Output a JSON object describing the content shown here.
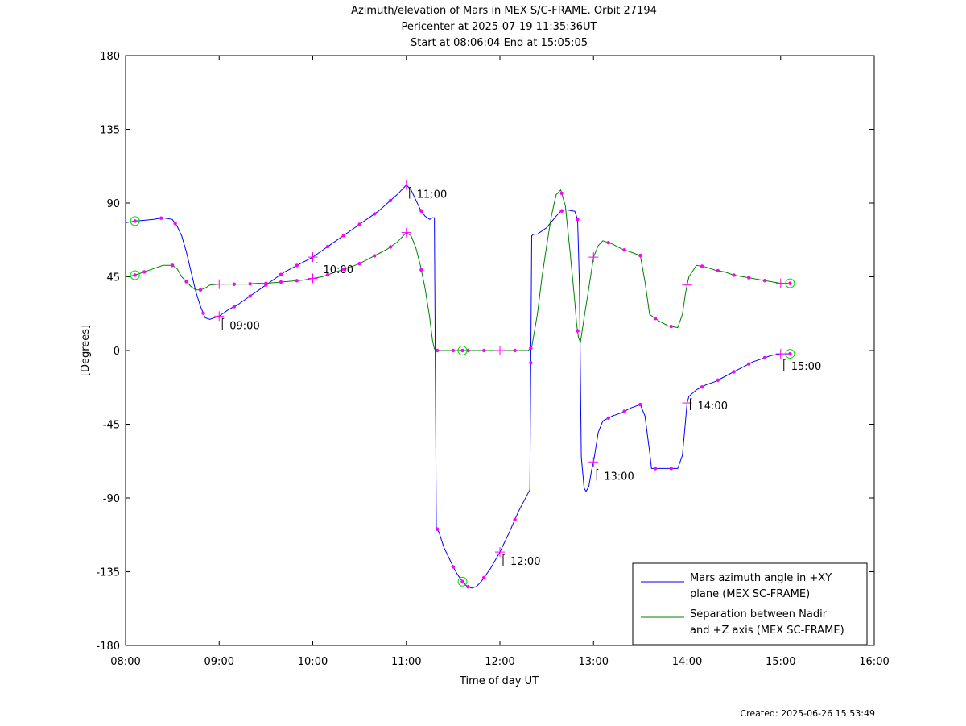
{
  "title_lines": [
    "Azimuth/elevation of Mars in MEX S/C-FRAME.  Orbit 27194",
    "Pericenter at 2025-07-19 11:35:36UT",
    "Start at 08:06:04 End at 15:05:05"
  ],
  "created": "Created: 2025-06-26 15:53:49",
  "colors": {
    "azimuth": "#0000ff",
    "separation": "#008000",
    "markers": "#ff00ff",
    "circle_markers": "#00dd00"
  },
  "chart_data": {
    "type": "line",
    "xlabel": "Time of day UT",
    "ylabel": "[Degrees]",
    "xlim_hours": [
      8,
      16
    ],
    "ylim": [
      -180,
      180
    ],
    "x_tick_labels": [
      "08:00",
      "09:00",
      "10:00",
      "11:00",
      "12:00",
      "13:00",
      "14:00",
      "15:00",
      "16:00"
    ],
    "y_ticks": [
      180,
      135,
      90,
      45,
      0,
      -45,
      -90,
      -135,
      -180
    ],
    "legend_position": "bottom-right",
    "legend": [
      {
        "line1": "Mars azimuth angle in +XY",
        "line2": "plane (MEX SC-FRAME)"
      },
      {
        "line1": "Separation between Nadir",
        "line2": "and +Z axis (MEX SC-FRAME)"
      }
    ],
    "hour_annotations": [
      {
        "label": "09:00",
        "x": 9,
        "y": 21
      },
      {
        "label": "10:00",
        "x": 10,
        "y": 55
      },
      {
        "label": "11:00",
        "x": 11,
        "y": 101
      },
      {
        "label": "12:00",
        "x": 12,
        "y": -123
      },
      {
        "label": "13:00",
        "x": 13,
        "y": -71
      },
      {
        "label": "14:00",
        "x": 14,
        "y": -28
      },
      {
        "label": "15:00",
        "x": 15,
        "y": -4
      }
    ],
    "series": [
      {
        "x": [
          8.0,
          8.1,
          8.2,
          8.3,
          8.4,
          8.5,
          8.55,
          8.6,
          8.65,
          8.7,
          8.75,
          8.8,
          8.85,
          8.9,
          8.95,
          9.0,
          9.1,
          9.2,
          9.3,
          9.4,
          9.5,
          9.6,
          9.7,
          9.8,
          9.9,
          10.0,
          10.1,
          10.2,
          10.3,
          10.4,
          10.5,
          10.6,
          10.7,
          10.8,
          10.9,
          11.0,
          11.05,
          11.1,
          11.15,
          11.2,
          11.25,
          11.28,
          11.3,
          11.32,
          11.34,
          11.35,
          11.4,
          11.5,
          11.55,
          11.6,
          11.65,
          11.7,
          11.75,
          11.8,
          11.9,
          12.0,
          12.1,
          12.2,
          12.32,
          12.34,
          12.36,
          12.4,
          12.5,
          12.6,
          12.65,
          12.7,
          12.8,
          12.83,
          12.85,
          12.87,
          12.9,
          12.92,
          12.95,
          12.98,
          13.0,
          13.05,
          13.1,
          13.2,
          13.3,
          13.4,
          13.5,
          13.55,
          13.6,
          13.62,
          13.65,
          13.7,
          13.8,
          13.9,
          13.95,
          13.98,
          14.0,
          14.02,
          14.1,
          14.2,
          14.3,
          14.4,
          14.5,
          14.6,
          14.7,
          14.8,
          14.9,
          15.0,
          15.08
        ],
        "values": [
          78,
          79,
          79.5,
          80,
          81,
          80,
          76,
          70,
          60,
          48,
          36,
          27,
          20,
          19,
          20,
          21,
          25,
          28,
          32,
          36,
          40,
          44,
          48,
          51,
          54,
          57,
          61,
          65,
          69,
          73,
          77,
          81,
          85,
          90,
          95,
          101,
          98,
          92,
          86,
          82,
          80,
          81,
          81,
          -108,
          -110,
          -111,
          -120,
          -132,
          -137,
          -141,
          -144,
          -145,
          -144,
          -141,
          -133,
          -123,
          -111,
          -98,
          -85,
          70,
          71,
          71,
          75,
          82,
          85,
          86,
          85,
          80,
          40,
          -65,
          -84,
          -86,
          -83,
          -73,
          -68,
          -50,
          -43,
          -40,
          -38,
          -35,
          -33,
          -40,
          -62,
          -72,
          -72,
          -72,
          -72,
          -72,
          -64,
          -45,
          -32,
          -28,
          -24,
          -21,
          -19,
          -16,
          -13,
          -10,
          -7,
          -5,
          -3,
          -2,
          -2
        ],
        "markers": {
          "dot_x": [
            8.38,
            8.53,
            8.83,
            9.16,
            9.33,
            9.5,
            9.66,
            9.83,
            10.16,
            10.33,
            10.5,
            10.66,
            10.83,
            11.16,
            11.33,
            11.5,
            11.66,
            11.83,
            12.16,
            12.33,
            12.66,
            12.83,
            13.16,
            13.33,
            13.5,
            13.66,
            13.83,
            14.16,
            14.33,
            14.5,
            14.66,
            14.83
          ],
          "cross_x": [
            9.0,
            10.0,
            11.0,
            12.0,
            13.0,
            14.0,
            15.0
          ],
          "circle_x": [
            8.1,
            11.6,
            15.1
          ]
        }
      },
      {
        "x": [
          8.0,
          8.1,
          8.2,
          8.3,
          8.4,
          8.5,
          8.55,
          8.6,
          8.65,
          8.7,
          8.75,
          8.8,
          8.85,
          8.9,
          9.0,
          9.1,
          9.2,
          9.3,
          9.4,
          9.5,
          9.6,
          9.7,
          9.8,
          9.9,
          10.0,
          10.1,
          10.2,
          10.3,
          10.4,
          10.5,
          10.6,
          10.7,
          10.8,
          10.9,
          11.0,
          11.05,
          11.1,
          11.15,
          11.2,
          11.25,
          11.28,
          11.3,
          11.32,
          11.35,
          11.4,
          11.5,
          11.6,
          11.7,
          11.8,
          11.9,
          12.0,
          12.1,
          12.2,
          12.3,
          12.34,
          12.4,
          12.45,
          12.5,
          12.55,
          12.6,
          12.65,
          12.7,
          12.75,
          12.8,
          12.82,
          12.84,
          12.86,
          12.9,
          12.95,
          13.0,
          13.05,
          13.1,
          13.2,
          13.3,
          13.4,
          13.5,
          13.55,
          13.6,
          13.65,
          13.7,
          13.8,
          13.9,
          13.95,
          13.98,
          14.0,
          14.02,
          14.1,
          14.2,
          14.3,
          14.4,
          14.5,
          14.6,
          14.7,
          14.8,
          14.9,
          15.0,
          15.08
        ],
        "values": [
          45,
          46,
          48,
          50,
          52,
          52,
          50,
          45,
          42,
          39,
          37,
          37,
          38,
          40,
          40.5,
          40.5,
          40.5,
          40.5,
          41,
          41,
          41.5,
          42,
          42.5,
          43,
          44,
          45,
          47,
          49,
          51,
          53,
          56,
          59,
          62,
          66,
          72,
          70,
          63,
          52,
          38,
          20,
          6,
          1,
          0,
          0,
          0,
          0,
          0,
          0,
          0,
          0,
          0,
          0,
          0,
          0,
          2,
          22,
          45,
          64,
          82,
          95,
          98,
          88,
          60,
          30,
          16,
          8,
          5,
          20,
          38,
          57,
          64,
          67,
          65,
          62,
          60,
          58,
          42,
          22,
          20,
          18,
          15,
          14,
          22,
          34,
          40,
          45,
          52,
          51,
          49,
          48,
          46,
          45,
          44,
          43,
          42,
          41,
          41
        ],
        "markers": {
          "dot_x": [
            8.2,
            8.5,
            8.65,
            8.8,
            9.16,
            9.33,
            9.5,
            9.66,
            9.83,
            10.16,
            10.33,
            10.5,
            10.66,
            10.83,
            11.16,
            11.33,
            11.5,
            11.66,
            11.83,
            12.16,
            12.33,
            12.66,
            12.83,
            13.16,
            13.33,
            13.5,
            13.66,
            13.83,
            14.16,
            14.33,
            14.5,
            14.66,
            14.83
          ],
          "cross_x": [
            9.0,
            10.0,
            11.0,
            12.0,
            13.0,
            14.0,
            15.0
          ],
          "circle_x": [
            8.1,
            11.6,
            15.1
          ]
        }
      }
    ]
  }
}
